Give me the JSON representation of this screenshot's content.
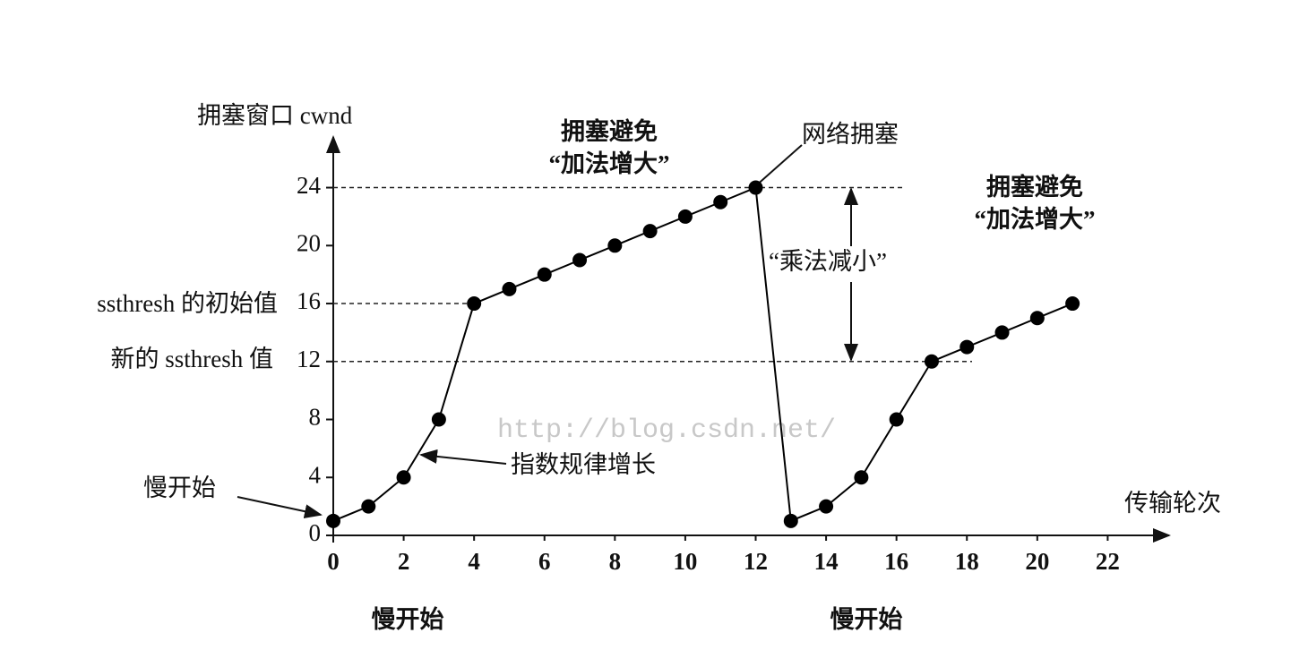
{
  "chart_data": {
    "type": "line",
    "y_label": "拥塞窗口 cwnd",
    "x_label": "传输轮次",
    "x": [
      0,
      1,
      2,
      3,
      4,
      5,
      6,
      7,
      8,
      9,
      10,
      11,
      12,
      13,
      14,
      15,
      16,
      17,
      18,
      19,
      20,
      21
    ],
    "values": [
      1,
      2,
      4,
      8,
      16,
      17,
      18,
      19,
      20,
      21,
      22,
      23,
      24,
      1,
      2,
      4,
      8,
      12,
      13,
      14,
      15,
      16
    ],
    "color": "#000000",
    "xlim": [
      0,
      24
    ],
    "ylim": [
      0,
      27
    ],
    "xticks": [
      0,
      2,
      4,
      6,
      8,
      10,
      12,
      14,
      16,
      18,
      20,
      22
    ],
    "yticks": [
      0,
      4,
      8,
      12,
      16,
      20,
      24
    ],
    "reference_lines": [
      24,
      16,
      12
    ],
    "annotations": [
      "拥塞避免",
      "“加法增大”",
      "网络拥塞",
      "拥塞避免",
      "“加法增大”",
      "“乘法减小”",
      "ssthresh 的初始值",
      "新的 ssthresh 值",
      "慢开始",
      "指数规律增长",
      "慢开始",
      "慢开始",
      "http://blog.csdn.net/"
    ]
  }
}
